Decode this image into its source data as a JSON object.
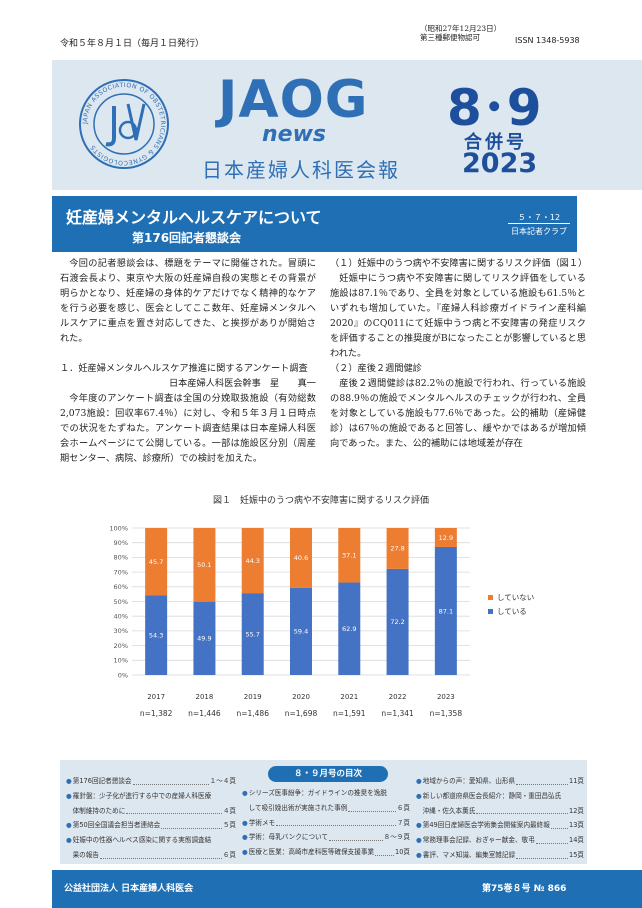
{
  "header": {
    "pub_date": "令和５年８月１日（毎月１日発行）",
    "permit_line1": "（昭和27年12月23日）",
    "permit_line2": "第三種郵便物認可",
    "issn": "ISSN 1348-5938"
  },
  "masthead": {
    "logo_main": "JAOG",
    "logo_sub": "news",
    "paper_name": "日本産婦人科医会報",
    "issue_number": "8･9",
    "issue_combined": "合併号",
    "issue_year": "2023",
    "seal_text": "JAPAN ASSOCIATION OF OBSTETRICIANS & GYNECOLOGISTS",
    "brand_color": "#2f6fb6"
  },
  "article": {
    "title": "妊産婦メンタルヘルスケアについて",
    "subtitle": "第176回記者懇談会",
    "date_tag": "５・７・12",
    "date_tag_sub": "日本記者クラブ",
    "left_paragraphs": [
      "今回の記者懇談会は、標題をテーマに開催された。冒頭に石渡会長より、東京や大阪の妊産婦自殺の実態とその背景が明らかとなり、妊産婦の身体的ケアだけでなく精神的なケアを行う必要を感じ、医会としてここ数年、妊産婦メンタルヘルスケアに重点を置き対応してきた、と挨拶がありが開始された。"
    ],
    "left_section_heading": "１．妊産婦メンタルヘルスケア推進に関するアンケート調査",
    "left_author": "日本産婦人科医会幹事　星　　真一",
    "left_section_paragraph": "今年度のアンケート調査は全国の分娩取扱施設（有効総数2,073施設：回収率67.4％）に対し、令和５年３月１日時点での状況をたずねた。アンケート調査結果は日本産婦人科医会ホームページにて公開している。一部は施設区分別（周産期センター、病院、診療所）での検討を加えた。",
    "right_heading_1": "（１）妊娠中のうつ病や不安障害に関するリスク評価（図１）",
    "right_paragraph_1": "妊娠中にうつ病や不安障害に関してリスク評価をしている施設は87.1％であり、全員を対象としている施設も61.5％といずれも増加していた。『産婦人科診療ガイドライン産科編2020』のCQ011にて妊娠中うつ病と不安障害の発症リスクを評価することの推奨度がBになったことが影響していると思われた。",
    "right_heading_2": "（２）産後２週間健診",
    "right_paragraph_2": "産後２週間健診は82.2％の施設で行われ、行っている施設の88.9％の施設でメンタルヘルスのチェックが行われ、全員を対象としている施設も77.6％であった。公的補助（産婦健診）は67％の施設であると回答し、緩やかではあるが増加傾向であった。また、公的補助には地域差が存在"
  },
  "figure": {
    "caption": "図１　妊娠中のうつ病や不安障害に関するリスク評価"
  },
  "chart_data": {
    "type": "bar",
    "stacked": true,
    "percent_stacked": true,
    "categories": [
      "2017",
      "2018",
      "2019",
      "2020",
      "2021",
      "2022",
      "2023"
    ],
    "n_labels": [
      "n=1,382",
      "n=1,446",
      "n=1,486",
      "n=1,698",
      "n=1,591",
      "n=1,341",
      "n=1,358"
    ],
    "series": [
      {
        "name": "している",
        "values": [
          54.3,
          49.9,
          55.7,
          59.4,
          62.9,
          72.2,
          87.1
        ],
        "color": "#4472c4"
      },
      {
        "name": "していない",
        "values": [
          45.7,
          50.1,
          44.3,
          40.6,
          37.1,
          27.8,
          12.9
        ],
        "color": "#ed7d31"
      }
    ],
    "y_ticks": [
      "0%",
      "10%",
      "20%",
      "30%",
      "40%",
      "50%",
      "60%",
      "70%",
      "80%",
      "90%",
      "100%"
    ],
    "ylim": [
      0,
      100
    ],
    "grid": true,
    "legend_position": "right"
  },
  "toc": {
    "title": "８・９月号の目次",
    "col1": [
      {
        "t": "第176回記者懇談会",
        "p": "１～４頁"
      },
      {
        "t": "羅針盤：少子化が進行する中での産婦人科医療",
        "p": ""
      },
      {
        "t": "　体制維持のために",
        "p": "４頁"
      },
      {
        "t": "第50回全国議会担当者連絡会",
        "p": "５頁"
      },
      {
        "t": "妊娠中の性器ヘルペス感染に関する実態調査結",
        "p": ""
      },
      {
        "t": "　果の報告",
        "p": "６頁"
      }
    ],
    "col2": [
      {
        "t": "シリーズ医事紛争：ガイドラインの推奨を逸脱",
        "p": ""
      },
      {
        "t": "　して吸引娩出術が実施された事例",
        "p": "６頁"
      },
      {
        "t": "学術メモ",
        "p": "７頁"
      },
      {
        "t": "学術：母乳バンクについて",
        "p": "８～９頁"
      },
      {
        "t": "医療と医業：高崎市産科医等確保支援事業",
        "p": "10頁"
      }
    ],
    "col3": [
      {
        "t": "地域からの声：愛知県、山形県",
        "p": "11頁"
      },
      {
        "t": "新しい都道府県医会長紹介：静岡・重田昌弘氏",
        "p": ""
      },
      {
        "t": "　沖縄・佐久本薫氏",
        "p": "12頁"
      },
      {
        "t": "第49回日産婦医会学術集会開催案内最終報",
        "p": "13頁"
      },
      {
        "t": "常務理事会記録、おぎゃー献金、敬弔",
        "p": "14頁"
      },
      {
        "t": "書評、マメ知識、編集室雑記録",
        "p": "15頁"
      }
    ]
  },
  "footer": {
    "org": "公益社団法人 日本産婦人科医会",
    "volume": "第75巻８号 № 866"
  }
}
